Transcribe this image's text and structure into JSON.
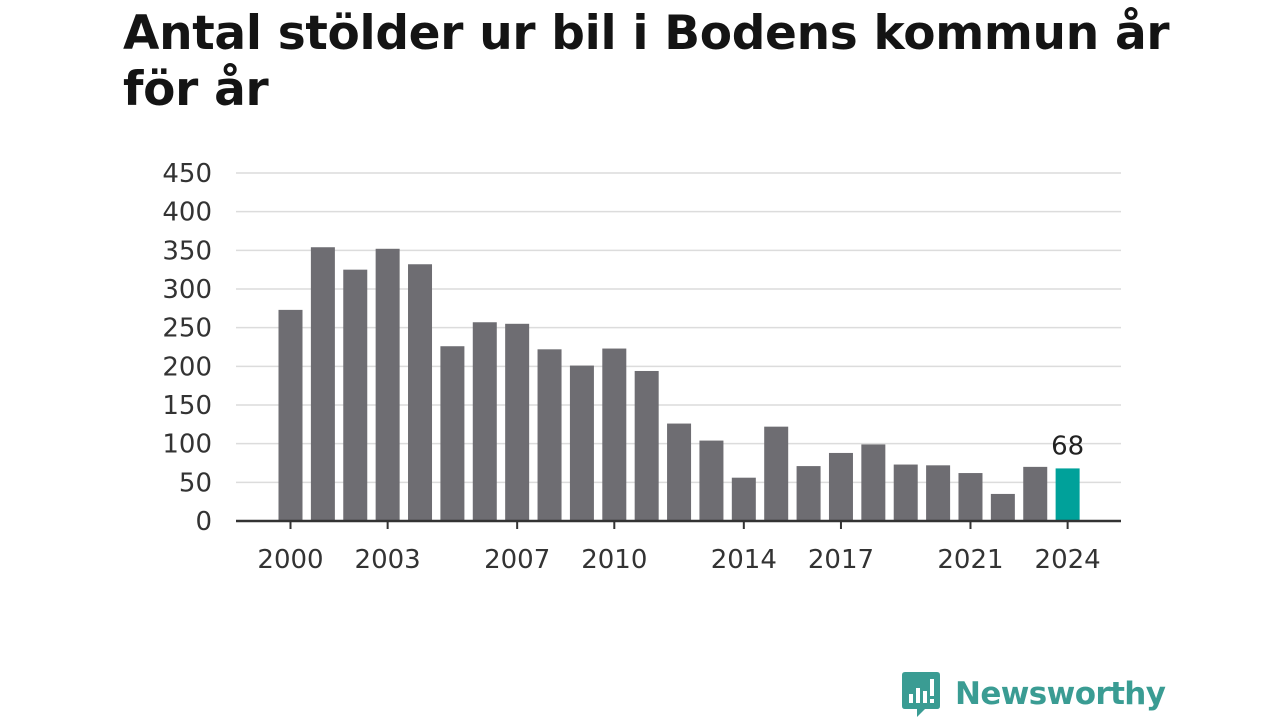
{
  "chart_data": {
    "type": "bar",
    "title": "Antal stölder ur bil i Bodens kommun år för år",
    "categories": [
      "2000",
      "2001",
      "2002",
      "2003",
      "2004",
      "2005",
      "2006",
      "2007",
      "2008",
      "2009",
      "2010",
      "2011",
      "2012",
      "2013",
      "2014",
      "2015",
      "2016",
      "2017",
      "2018",
      "2019",
      "2020",
      "2021",
      "2022",
      "2023",
      "2024"
    ],
    "values": [
      273,
      354,
      325,
      352,
      332,
      226,
      257,
      255,
      222,
      201,
      223,
      194,
      126,
      104,
      56,
      122,
      71,
      88,
      99,
      73,
      72,
      62,
      35,
      70,
      68
    ],
    "x_tick_labels": [
      "2000",
      "2003",
      "2007",
      "2010",
      "2014",
      "2017",
      "2021",
      "2024"
    ],
    "y_ticks": [
      0,
      50,
      100,
      150,
      200,
      250,
      300,
      350,
      400,
      450
    ],
    "ylim": [
      0,
      450
    ],
    "xlabel": "",
    "ylabel": "",
    "grid": true,
    "highlight_index": 24,
    "highlight_label": "68",
    "colors": {
      "bar": "#6e6d72",
      "highlight": "#00a19a",
      "grid": "#dcdcdc",
      "axis": "#333333"
    }
  },
  "brand": {
    "name": "Newsworthy",
    "icon": "newsworthy-logo-icon"
  }
}
